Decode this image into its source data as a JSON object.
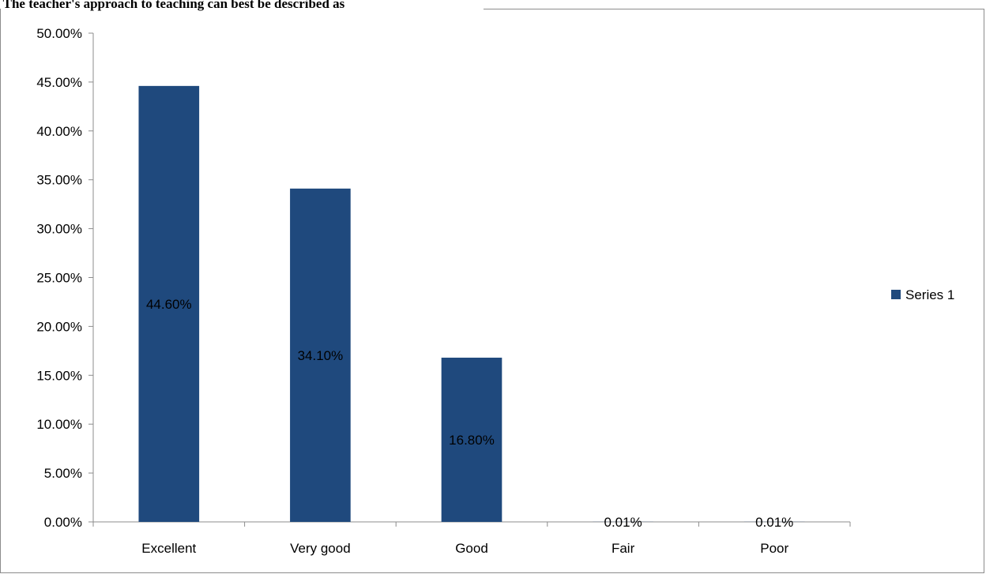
{
  "chart_data": {
    "type": "bar",
    "title": ") The teacher's approach to teaching can best be described as",
    "categories": [
      "Excellent",
      "Very good",
      "Good",
      "Fair",
      "Poor"
    ],
    "series": [
      {
        "name": "Series 1",
        "values": [
          44.6,
          34.1,
          16.8,
          0.01,
          0.01
        ],
        "labels": [
          "44.60%",
          "34.10%",
          "16.80%",
          "0.01%",
          "0.01%"
        ],
        "color": "#1f497d"
      }
    ],
    "ylim": [
      0,
      50
    ],
    "yticks": [
      0,
      5,
      10,
      15,
      20,
      25,
      30,
      35,
      40,
      45,
      50
    ],
    "ytick_labels": [
      "0.00%",
      "5.00%",
      "10.00%",
      "15.00%",
      "20.00%",
      "25.00%",
      "30.00%",
      "35.00%",
      "40.00%",
      "45.00%",
      "50.00%"
    ],
    "grid": false,
    "legend_position": "right"
  }
}
